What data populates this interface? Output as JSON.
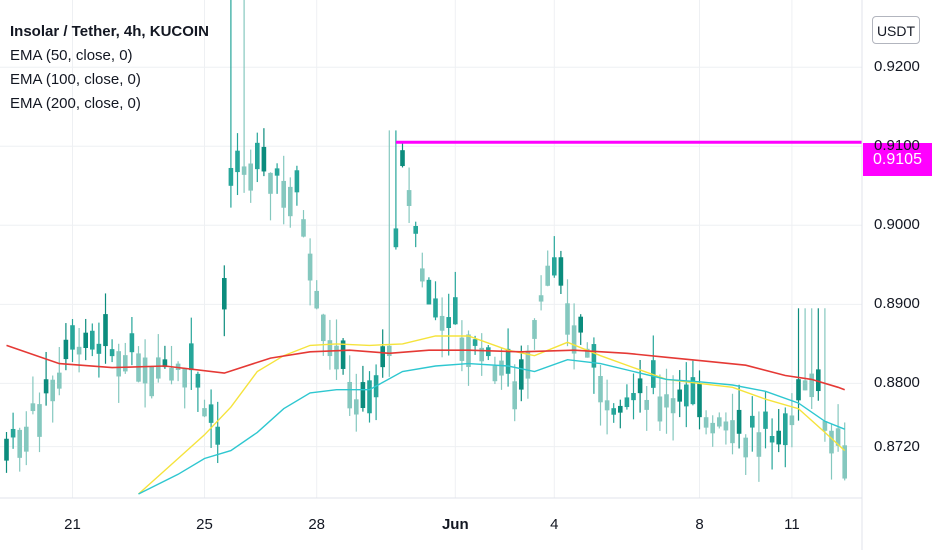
{
  "legend": {
    "title": "Insolar / Tether, 4h, KUCOIN",
    "indicators": [
      "EMA (50, close, 0)",
      "EMA (100, close, 0)",
      "EMA (200, close, 0)"
    ]
  },
  "currency_button": "USDT",
  "last_price_label": "0.9105",
  "colors": {
    "up": "#26a69a",
    "up_dark": "#0b8c7d",
    "down": "#85c8bf",
    "ema50": "#f5e33c",
    "ema100": "#2ec7d0",
    "ema200": "#e53935",
    "price_line": "#ff00ff",
    "grid": "#eef0f3"
  },
  "chart_data": {
    "type": "candlestick",
    "symbol": "Insolar / Tether",
    "interval": "4h",
    "exchange": "KUCOIN",
    "y_ticks": [
      "0.9200",
      "0.9100",
      "0.9000",
      "0.8900",
      "0.8800",
      "0.8720"
    ],
    "x_ticks": [
      {
        "label": "21",
        "bold": false,
        "index": 10
      },
      {
        "label": "25",
        "bold": false,
        "index": 30
      },
      {
        "label": "28",
        "bold": false,
        "index": 47
      },
      {
        "label": "Jun",
        "bold": true,
        "index": 68
      },
      {
        "label": "4",
        "bold": false,
        "index": 83
      },
      {
        "label": "8",
        "bold": false,
        "index": 105
      },
      {
        "label": "11",
        "bold": false,
        "index": 119
      }
    ],
    "ylim": [
      0.8655,
      0.9285
    ],
    "candle_count": 128,
    "price_line": {
      "value": 0.9105,
      "from_index": 59
    },
    "ema_series": [
      {
        "name": "EMA (50, close, 0)",
        "x": [
          20,
          26,
          30,
          34,
          38,
          42,
          46,
          50,
          55,
          60,
          65,
          70,
          76,
          80,
          85,
          90,
          95,
          100,
          105,
          110,
          115,
          120,
          124,
          127
        ],
        "y": [
          0.866,
          0.8705,
          0.8735,
          0.877,
          0.8815,
          0.8835,
          0.8848,
          0.885,
          0.8848,
          0.885,
          0.886,
          0.886,
          0.8842,
          0.8835,
          0.8852,
          0.8835,
          0.882,
          0.8805,
          0.88,
          0.8795,
          0.878,
          0.8768,
          0.8738,
          0.8715
        ]
      },
      {
        "name": "EMA (100, close, 0)",
        "x": [
          20,
          26,
          30,
          34,
          38,
          42,
          46,
          50,
          55,
          60,
          65,
          70,
          76,
          80,
          85,
          90,
          95,
          100,
          105,
          110,
          115,
          120,
          124,
          127
        ],
        "y": [
          0.866,
          0.8685,
          0.8705,
          0.8715,
          0.8738,
          0.8768,
          0.8788,
          0.8792,
          0.8792,
          0.8815,
          0.8822,
          0.8825,
          0.8822,
          0.8815,
          0.883,
          0.8825,
          0.8815,
          0.8805,
          0.8802,
          0.8798,
          0.879,
          0.8775,
          0.8752,
          0.8742
        ]
      },
      {
        "name": "EMA (200, close, 0)",
        "x": [
          0,
          8,
          16,
          24,
          33,
          40,
          46,
          52,
          58,
          64,
          70,
          78,
          86,
          94,
          100,
          106,
          112,
          118,
          122,
          126,
          127
        ],
        "y": [
          0.8848,
          0.8825,
          0.882,
          0.8822,
          0.8813,
          0.8832,
          0.884,
          0.8842,
          0.8838,
          0.8842,
          0.8842,
          0.884,
          0.8842,
          0.8838,
          0.8833,
          0.8828,
          0.8823,
          0.881,
          0.8805,
          0.8795,
          0.8792
        ]
      }
    ]
  }
}
